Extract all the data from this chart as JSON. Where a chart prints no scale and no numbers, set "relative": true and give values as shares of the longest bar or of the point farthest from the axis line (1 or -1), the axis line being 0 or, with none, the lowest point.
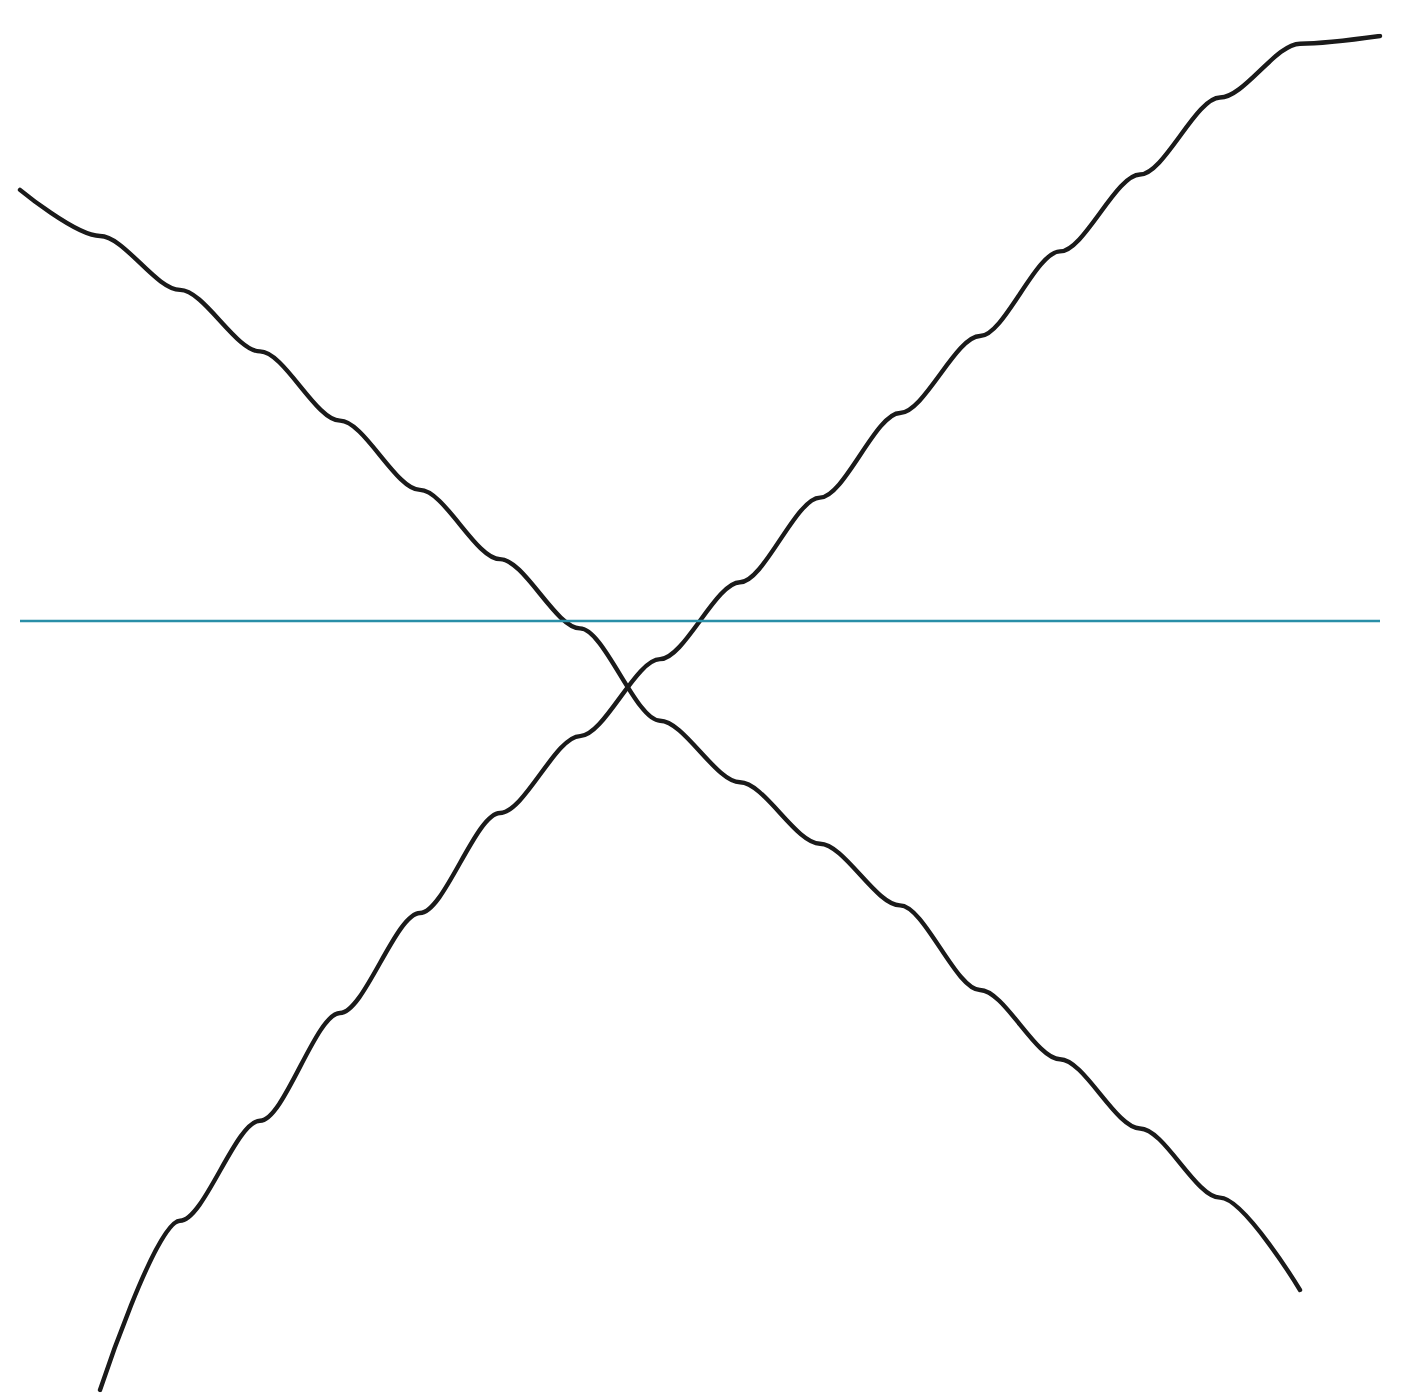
{
  "chart_data": {
    "type": "line",
    "relative": true,
    "categories": [
      null,
      null,
      null,
      null,
      null,
      null,
      null,
      null,
      null,
      null,
      null,
      null,
      null,
      null,
      null,
      null,
      null,
      null
    ],
    "series": [
      {
        "color": "#1a1a1a",
        "values": [
          0.56,
          0.5,
          0.43,
          0.35,
          0.26,
          0.17,
          0.08,
          -0.01,
          -0.13,
          -0.21,
          -0.29,
          -0.37,
          -0.48,
          -0.57,
          -0.66,
          -0.75,
          -0.87,
          null
        ]
      },
      {
        "color": "#1a1a1a",
        "values": [
          null,
          -1,
          -0.78,
          -0.65,
          -0.51,
          -0.38,
          -0.25,
          -0.15,
          -0.05,
          0.05,
          0.16,
          0.27,
          0.37,
          0.48,
          0.58,
          0.68,
          0.75,
          0.76
        ]
      }
    ],
    "ref_lines": [
      {
        "axis": "y",
        "value": 0,
        "color": "#2a8fa8"
      }
    ],
    "marker": "none",
    "line_style": "solid",
    "grid": false,
    "tick_labels": false
  }
}
